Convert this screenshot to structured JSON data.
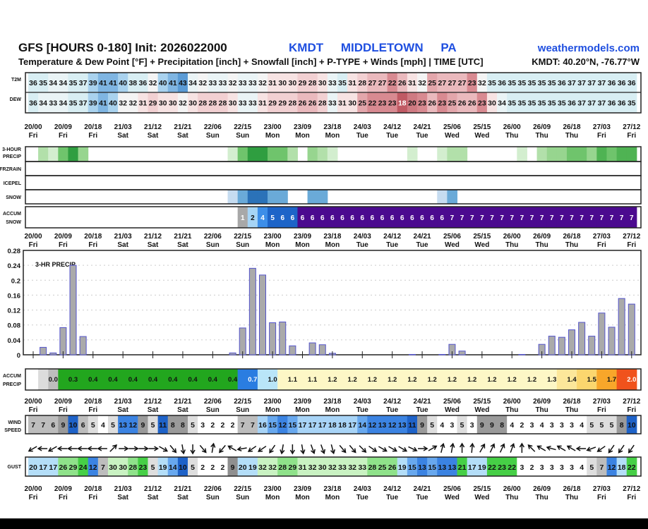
{
  "header": {
    "title": "GFS [HOURS 0-180] Init: 2026022000",
    "station": "KMDT MIDDLETOWN PA",
    "brand": "weathermodels.com",
    "subtitle": "Temperature & Dew Point [°F] + Precipitation [inch] + Snowfall [inch] + P-TYPE + Winds [mph] | TIME [UTC]",
    "coords": "KMDT: 40.20°N, -76.77°W"
  },
  "row_labels": {
    "t2m": "T2M",
    "dew": "DEW",
    "precip3_a": "3-HOUR",
    "precip3_b": "PRECIP",
    "frzrain": "FRZRAIN",
    "icepel": "ICEPEL",
    "snow": "SNOW",
    "accum_snow_a": "ACCUM",
    "accum_snow_b": "SNOW",
    "accum_precip_a": "ACCUM",
    "accum_precip_b": "PRECIP",
    "wind_a": "WIND",
    "wind_b": "SPEED",
    "gust": "GUST"
  },
  "time_axis": {
    "dates": [
      "20/00",
      "20/09",
      "20/18",
      "21/03",
      "21/12",
      "21/21",
      "22/06",
      "22/15",
      "23/00",
      "23/09",
      "23/18",
      "24/03",
      "24/12",
      "24/21",
      "25/06",
      "25/15",
      "26/00",
      "26/09",
      "26/18",
      "27/03",
      "27/12"
    ],
    "days": [
      "Fri",
      "Fri",
      "Fri",
      "Sat",
      "Sat",
      "Sat",
      "Sun",
      "Sun",
      "Mon",
      "Mon",
      "Mon",
      "Tue",
      "Tue",
      "Tue",
      "Wed",
      "Wed",
      "Thu",
      "Thu",
      "Thu",
      "Fri",
      "Fri"
    ]
  },
  "colors": {
    "brand": "#1f4fe0",
    "bar_fill": "#aaaaaa",
    "bar_edge": "#5555cc",
    "snow_accum": "#4b0a8f"
  },
  "chart_data": {
    "type": "bar",
    "title": "3-HR PRECIP",
    "xlabel": "",
    "ylabel": "",
    "x_hours": [
      0,
      3,
      6,
      9,
      12,
      15,
      18,
      21,
      24,
      27,
      30,
      33,
      36,
      39,
      42,
      45,
      48,
      51,
      54,
      57,
      60,
      63,
      66,
      69,
      72,
      75,
      78,
      81,
      84,
      87,
      90,
      93,
      96,
      99,
      102,
      105,
      108,
      111,
      114,
      117,
      120,
      123,
      126,
      129,
      132,
      135,
      138,
      141,
      144,
      147,
      150,
      153,
      156,
      159,
      162,
      165,
      168,
      171,
      174,
      177,
      180
    ],
    "values": [
      0,
      0.02,
      0.005,
      0.073,
      0.24,
      0.049,
      0,
      0,
      0,
      0,
      0,
      0,
      0,
      0,
      0,
      0,
      0,
      0,
      0,
      0,
      0.005,
      0.072,
      0.232,
      0.214,
      0.086,
      0.088,
      0.024,
      0,
      0.032,
      0.027,
      0.004,
      0,
      0,
      0,
      0,
      0,
      0,
      0,
      0.001,
      0,
      0,
      0.001,
      0.028,
      0.01,
      0,
      0,
      0,
      0,
      0,
      0.001,
      0,
      0.028,
      0.05,
      0.047,
      0.067,
      0.087,
      0.05,
      0.112,
      0.074,
      0.151,
      0.136
    ],
    "ylim": [
      0,
      0.28
    ],
    "yticks": [
      "0",
      "0.04",
      "0.08",
      "0.12",
      "0.16",
      "0.2",
      "0.24",
      "0.28"
    ],
    "grid": true
  },
  "t2m": [
    36,
    35,
    34,
    34,
    35,
    37,
    39,
    41,
    41,
    40,
    38,
    36,
    32,
    40,
    41,
    43,
    34,
    32,
    33,
    33,
    32,
    33,
    33,
    32,
    31,
    30,
    30,
    29,
    28,
    30,
    33,
    35,
    31,
    28,
    27,
    27,
    22,
    26,
    31,
    32,
    25,
    27,
    27,
    27,
    23,
    32,
    35,
    36,
    35,
    35,
    35,
    35,
    35,
    36,
    37,
    37,
    37,
    37,
    36,
    36,
    36
  ],
  "dew": [
    36,
    34,
    33,
    34,
    35,
    37,
    39,
    41,
    40,
    32,
    32,
    31,
    29,
    30,
    30,
    32,
    30,
    28,
    28,
    28,
    30,
    33,
    33,
    31,
    29,
    29,
    28,
    26,
    26,
    28,
    33,
    31,
    30,
    25,
    22,
    23,
    23,
    18,
    20,
    23,
    26,
    23,
    25,
    26,
    26,
    23,
    30,
    34,
    35,
    35,
    35,
    35,
    35,
    35,
    36,
    37,
    37,
    37,
    36,
    36,
    35
  ],
  "snow_type_level": [
    0,
    0,
    0,
    0,
    0,
    0,
    0,
    0,
    0,
    0,
    0,
    0,
    0,
    0,
    0,
    0,
    0,
    0,
    0,
    0,
    1,
    2,
    3,
    3,
    2,
    2,
    0,
    0,
    2,
    2,
    0,
    0,
    0,
    0,
    0,
    0,
    0,
    0,
    0,
    0,
    0,
    1,
    2,
    0,
    0,
    0,
    0,
    0,
    0,
    0,
    0,
    0,
    0,
    0,
    0,
    0,
    0,
    0,
    0,
    0,
    0
  ],
  "accum_snow": [
    null,
    null,
    null,
    null,
    null,
    null,
    null,
    null,
    null,
    null,
    null,
    null,
    null,
    null,
    null,
    null,
    null,
    null,
    null,
    null,
    null,
    1,
    2,
    4,
    5,
    6,
    6,
    6,
    6,
    6,
    6,
    6,
    6,
    6,
    6,
    6,
    6,
    6,
    6,
    6,
    6,
    6,
    7,
    7,
    7,
    7,
    7,
    7,
    7,
    7,
    7,
    7,
    7,
    7,
    7,
    7,
    7,
    7,
    7,
    7,
    7
  ],
  "accum_precip": [
    "0.0",
    "0.3",
    "0.4",
    "0.4",
    "0.4",
    "0.4",
    "0.4",
    "0.4",
    "0.4",
    "0.4",
    "0.7",
    "1.0",
    "1.1",
    "1.1",
    "1.2",
    "1.2",
    "1.2",
    "1.2",
    "1.2",
    "1.2",
    "1.2",
    "1.2",
    "1.2",
    "1.2",
    "1.2",
    "1.3",
    "1.4",
    "1.5",
    "1.7",
    "2.0"
  ],
  "wind_speed": [
    7,
    7,
    6,
    9,
    10,
    6,
    5,
    4,
    5,
    13,
    12,
    9,
    5,
    11,
    8,
    8,
    5,
    3,
    2,
    2,
    2,
    7,
    7,
    16,
    15,
    12,
    15,
    17,
    17,
    17,
    18,
    18,
    17,
    14,
    12,
    13,
    12,
    13,
    11,
    9,
    5,
    4,
    3,
    5,
    3,
    9,
    9,
    8,
    4,
    2,
    3,
    4,
    3,
    3,
    3,
    4,
    5,
    5,
    5,
    8,
    10
  ],
  "wind_dir_arrow_deg": [
    240,
    270,
    240,
    270,
    270,
    270,
    270,
    270,
    45,
    90,
    90,
    90,
    90,
    120,
    140,
    170,
    180,
    140,
    10,
    220,
    300,
    260,
    235,
    235,
    215,
    190,
    180,
    170,
    160,
    160,
    165,
    140,
    140,
    135,
    125,
    120,
    120,
    120,
    115,
    90,
    60,
    15,
    10,
    0,
    5,
    30,
    25,
    25,
    20,
    0,
    315,
    300,
    285,
    300,
    300,
    270,
    250,
    235,
    215,
    215,
    215
  ],
  "gust": [
    20,
    17,
    17,
    26,
    29,
    24,
    12,
    7,
    30,
    30,
    28,
    23,
    5,
    19,
    14,
    10,
    5,
    2,
    2,
    2,
    9,
    20,
    19,
    32,
    32,
    28,
    29,
    31,
    32,
    30,
    32,
    33,
    32,
    33,
    28,
    25,
    26,
    19,
    15,
    13,
    15,
    13,
    13,
    21,
    17,
    19,
    22,
    23,
    22,
    3,
    2,
    3,
    3,
    3,
    3,
    4,
    5,
    7,
    12,
    18,
    22
  ]
}
